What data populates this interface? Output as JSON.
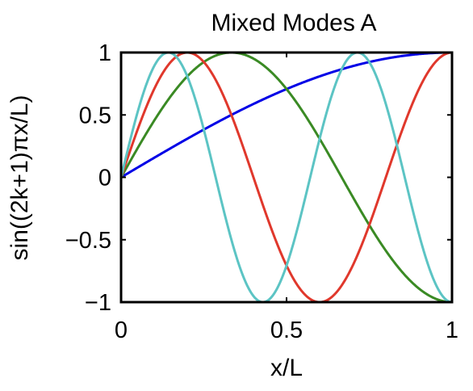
{
  "chart_data": {
    "type": "line",
    "title": "Mixed Modes A",
    "xlabel": "x/L",
    "ylabel": "sin((2k+1)πx/L)",
    "xlim": [
      0,
      1
    ],
    "ylim": [
      -1,
      1
    ],
    "xticks": [
      0,
      0.5,
      1
    ],
    "xtick_labels": [
      "0",
      "0.5",
      "1"
    ],
    "yticks": [
      -1,
      -0.5,
      0,
      0.5,
      1
    ],
    "ytick_labels": [
      "−1",
      "−0.5",
      "0",
      "0.5",
      "1"
    ],
    "grid": false,
    "series": [
      {
        "k": 0,
        "function": "sin((2k+1)πx/2)",
        "color": "#0000e6"
      },
      {
        "k": 1,
        "function": "sin((2k+1)πx/2)",
        "color": "#3a8a24"
      },
      {
        "k": 2,
        "function": "sin((2k+1)πx/2)",
        "color": "#e0382c"
      },
      {
        "k": 3,
        "function": "sin((2k+1)πx/2)",
        "color": "#5cc4c4"
      }
    ]
  }
}
